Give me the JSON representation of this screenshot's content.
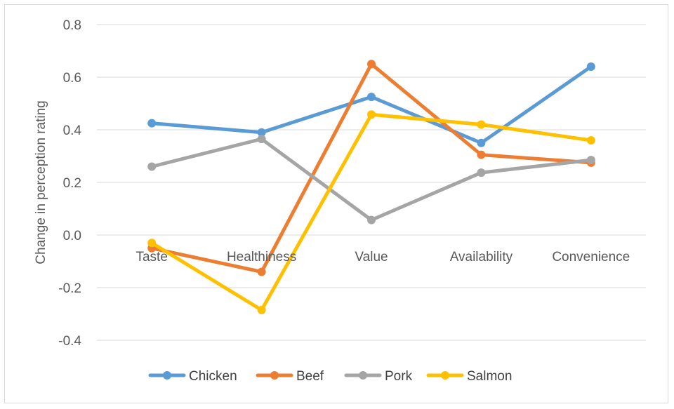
{
  "chart_data": {
    "type": "line",
    "title": "",
    "xlabel": "",
    "ylabel": "Change in perception rating",
    "categories": [
      "Taste",
      "Healthiness",
      "Value",
      "Availability",
      "Convenience"
    ],
    "ylim": [
      -0.4,
      0.8
    ],
    "yticks": [
      0.8,
      0.6,
      0.4,
      0.2,
      0.0,
      -0.2,
      -0.4
    ],
    "ytick_labels": [
      "0.8",
      "0.6",
      "0.4",
      "0.2",
      "0.0",
      "-0.2",
      "-0.4"
    ],
    "grid": true,
    "legend_position": "bottom",
    "series": [
      {
        "name": "Chicken",
        "color": "#5b9bd5",
        "values": [
          0.425,
          0.39,
          0.525,
          0.35,
          0.64
        ]
      },
      {
        "name": "Beef",
        "color": "#ed7d31",
        "values": [
          -0.05,
          -0.14,
          0.65,
          0.305,
          0.275
        ]
      },
      {
        "name": "Pork",
        "color": "#a5a5a5",
        "values": [
          0.26,
          0.365,
          0.057,
          0.237,
          0.285
        ]
      },
      {
        "name": "Salmon",
        "color": "#ffc000",
        "values": [
          -0.03,
          -0.285,
          0.458,
          0.42,
          0.36
        ]
      }
    ]
  }
}
